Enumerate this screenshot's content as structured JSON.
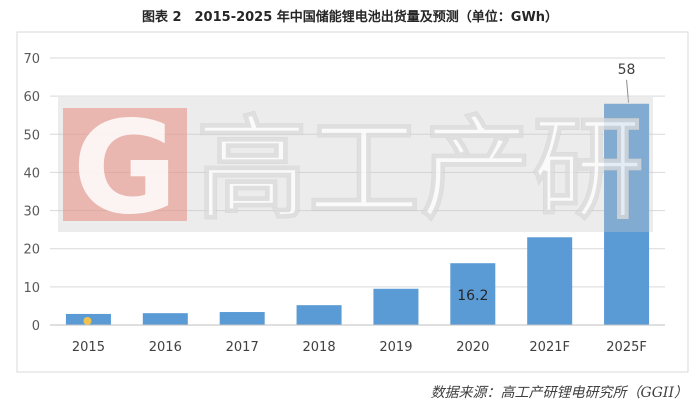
{
  "title": "图表 2　2015-2025 年中国储能锂电池出货量及预测（单位：GWh）",
  "source": "数据来源：高工产研锂电研究所（GGII）",
  "watermark": {
    "logo_letter": "G",
    "text": "高工产研"
  },
  "colors": {
    "bar": "#5b9bd5",
    "grid": "#d9d9d9",
    "axis_text": "#595959",
    "watermark_band": "#c8c8c8",
    "watermark_logo": "#e98a80",
    "dot": "#f2c14e"
  },
  "chart_data": {
    "type": "bar",
    "categories": [
      "2015",
      "2016",
      "2017",
      "2018",
      "2019",
      "2020",
      "2021F",
      "2025F"
    ],
    "values": [
      2.9,
      3.1,
      3.4,
      5.2,
      9.5,
      16.2,
      23,
      58
    ],
    "data_labels": [
      null,
      null,
      null,
      null,
      null,
      "16.2",
      null,
      "58"
    ],
    "ylim": [
      0,
      70
    ],
    "yticks": [
      0,
      10,
      20,
      30,
      40,
      50,
      60,
      70
    ],
    "grid": true
  }
}
